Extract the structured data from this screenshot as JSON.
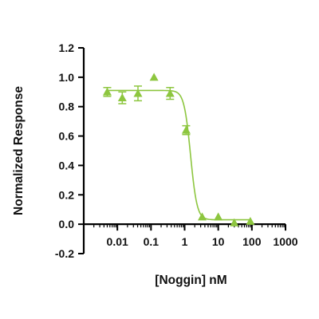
{
  "chart_data": {
    "type": "scatter",
    "title": "",
    "xlabel": "[Noggin] nM",
    "ylabel": "Normalized Response",
    "x_scale": "log",
    "xlim": [
      0.001,
      1000
    ],
    "ylim": [
      -0.2,
      1.2
    ],
    "x_ticks": [
      0.01,
      0.1,
      1,
      10,
      100,
      1000
    ],
    "x_tick_labels": [
      "0.01",
      "0.1",
      "1",
      "10",
      "100",
      "1000"
    ],
    "y_ticks": [
      -0.2,
      0.0,
      0.2,
      0.4,
      0.6,
      0.8,
      1.0,
      1.2
    ],
    "y_tick_labels": [
      "-0.2",
      "0.0",
      "0.2",
      "0.4",
      "0.6",
      "0.8",
      "1.0",
      "1.2"
    ],
    "grid": false,
    "marker": "triangle",
    "color": "#8dc63f",
    "series": [
      {
        "points": [
          {
            "x": 0.005,
            "y": 0.9,
            "err": 0.03
          },
          {
            "x": 0.014,
            "y": 0.86,
            "err": 0.04
          },
          {
            "x": 0.041,
            "y": 0.89,
            "err": 0.05
          },
          {
            "x": 0.123,
            "y": 1.0,
            "err": 0
          },
          {
            "x": 0.37,
            "y": 0.89,
            "err": 0.04
          },
          {
            "x": 1.11,
            "y": 0.64,
            "err": 0.03
          },
          {
            "x": 3.33,
            "y": 0.05,
            "err": 0
          },
          {
            "x": 10,
            "y": 0.05,
            "err": 0
          },
          {
            "x": 30,
            "y": 0.01,
            "err": 0
          },
          {
            "x": 90,
            "y": 0.02,
            "err": 0
          }
        ]
      }
    ],
    "fit": {
      "model": "4PL",
      "top": 0.91,
      "bottom": 0.03,
      "ec50": 1.5,
      "hill_slope": 4.5
    }
  }
}
